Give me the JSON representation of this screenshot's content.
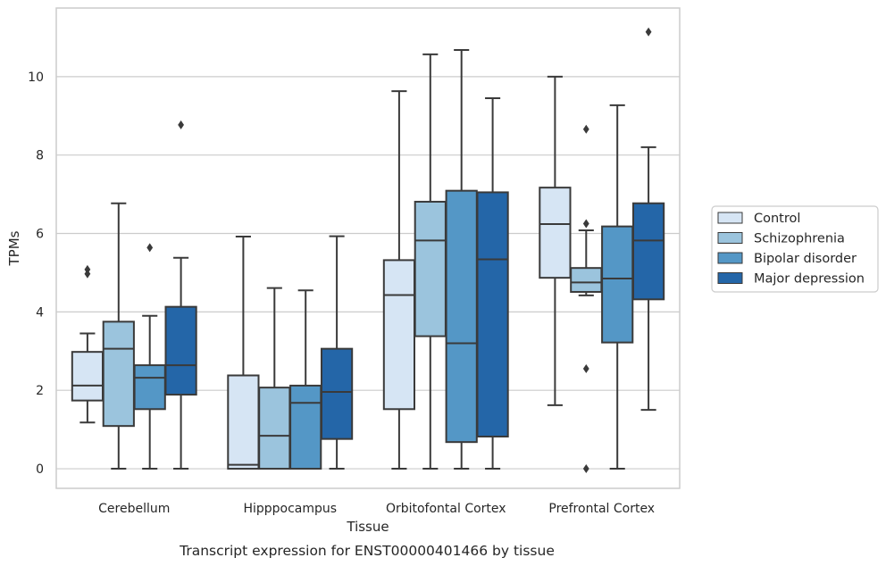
{
  "caption": "Transcript expression for ENST00000401466 by tissue",
  "chart_data": {
    "type": "box",
    "title": "",
    "xlabel": "Tissue",
    "ylabel": "TPMs",
    "ylim": [
      -0.5,
      11.75
    ],
    "yticks": [
      0,
      2,
      4,
      6,
      8,
      10
    ],
    "grid": "horizontal",
    "legend_position": "outside-right",
    "categories": [
      "Cerebellum",
      "Hipppocampus",
      "Orbitofontal Cortex",
      "Prefrontal Cortex"
    ],
    "series": [
      {
        "name": "Control",
        "color": "#d6e5f4",
        "boxes": [
          {
            "whisker_low": 1.18,
            "q1": 1.74,
            "median": 2.12,
            "q3": 2.98,
            "whisker_high": 3.45,
            "outliers": [
              4.97,
              5.08
            ]
          },
          {
            "whisker_low": 0.0,
            "q1": 0.0,
            "median": 0.1,
            "q3": 2.38,
            "whisker_high": 5.92,
            "outliers": []
          },
          {
            "whisker_low": 0.0,
            "q1": 1.52,
            "median": 4.43,
            "q3": 5.32,
            "whisker_high": 9.63,
            "outliers": []
          },
          {
            "whisker_low": 1.62,
            "q1": 4.87,
            "median": 6.24,
            "q3": 7.17,
            "whisker_high": 10.0,
            "outliers": []
          }
        ]
      },
      {
        "name": "Schizophrenia",
        "color": "#9bc4dd",
        "boxes": [
          {
            "whisker_low": 0.0,
            "q1": 1.09,
            "median": 3.06,
            "q3": 3.75,
            "whisker_high": 6.77,
            "outliers": []
          },
          {
            "whisker_low": 0.0,
            "q1": 0.0,
            "median": 0.84,
            "q3": 2.07,
            "whisker_high": 4.61,
            "outliers": []
          },
          {
            "whisker_low": 0.0,
            "q1": 3.38,
            "median": 5.82,
            "q3": 6.81,
            "whisker_high": 10.57,
            "outliers": []
          },
          {
            "whisker_low": 4.42,
            "q1": 4.51,
            "median": 4.75,
            "q3": 5.12,
            "whisker_high": 6.08,
            "outliers": [
              0.0,
              2.55,
              6.25,
              8.66
            ]
          }
        ]
      },
      {
        "name": "Bipolar disorder",
        "color": "#5497c6",
        "boxes": [
          {
            "whisker_low": 0.0,
            "q1": 1.52,
            "median": 2.32,
            "q3": 2.64,
            "whisker_high": 3.9,
            "outliers": [
              5.64
            ]
          },
          {
            "whisker_low": 0.0,
            "q1": 0.0,
            "median": 1.68,
            "q3": 2.12,
            "whisker_high": 4.55,
            "outliers": []
          },
          {
            "whisker_low": 0.0,
            "q1": 0.68,
            "median": 3.2,
            "q3": 7.09,
            "whisker_high": 10.68,
            "outliers": []
          },
          {
            "whisker_low": 0.0,
            "q1": 3.22,
            "median": 4.85,
            "q3": 6.18,
            "whisker_high": 9.27,
            "outliers": []
          }
        ]
      },
      {
        "name": "Major depression",
        "color": "#2466a8",
        "boxes": [
          {
            "whisker_low": 0.0,
            "q1": 1.89,
            "median": 2.64,
            "q3": 4.13,
            "whisker_high": 5.38,
            "outliers": [
              8.77
            ]
          },
          {
            "whisker_low": 0.0,
            "q1": 0.76,
            "median": 1.96,
            "q3": 3.06,
            "whisker_high": 5.93,
            "outliers": []
          },
          {
            "whisker_low": 0.0,
            "q1": 0.82,
            "median": 5.34,
            "q3": 7.05,
            "whisker_high": 9.45,
            "outliers": []
          },
          {
            "whisker_low": 1.5,
            "q1": 4.32,
            "median": 5.82,
            "q3": 6.77,
            "whisker_high": 8.2,
            "outliers": [
              11.14
            ]
          }
        ]
      }
    ]
  }
}
